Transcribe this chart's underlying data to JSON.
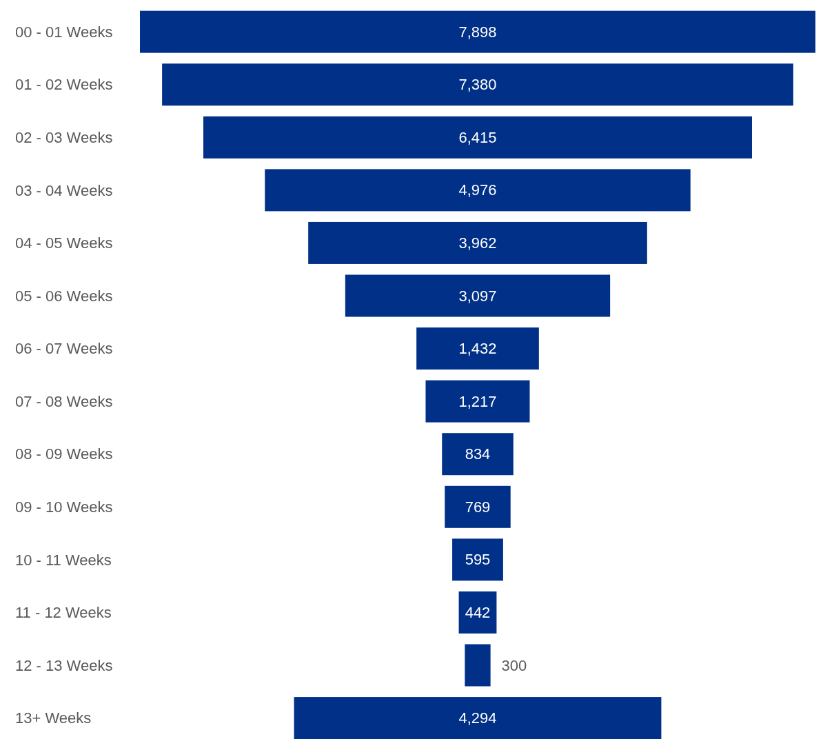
{
  "chart_data": {
    "type": "other",
    "categories": [
      "00 - 01 Weeks",
      "01 - 02 Weeks",
      "02 - 03 Weeks",
      "03 - 04 Weeks",
      "04 - 05 Weeks",
      "05 - 06 Weeks",
      "06 - 07 Weeks",
      "07 - 08 Weeks",
      "08 - 09 Weeks",
      "09 - 10 Weeks",
      "10 - 11 Weeks",
      "11 - 12 Weeks",
      "12 - 13 Weeks",
      "13+ Weeks"
    ],
    "values": [
      7898,
      7380,
      6415,
      4976,
      3962,
      3097,
      1432,
      1217,
      834,
      769,
      595,
      442,
      300,
      4294
    ],
    "value_labels": [
      "7,898",
      "7,380",
      "6,415",
      "4,976",
      "3,962",
      "3,097",
      "1,432",
      "1,217",
      "834",
      "769",
      "595",
      "442",
      "300",
      "4,294"
    ],
    "color": "#003087"
  }
}
